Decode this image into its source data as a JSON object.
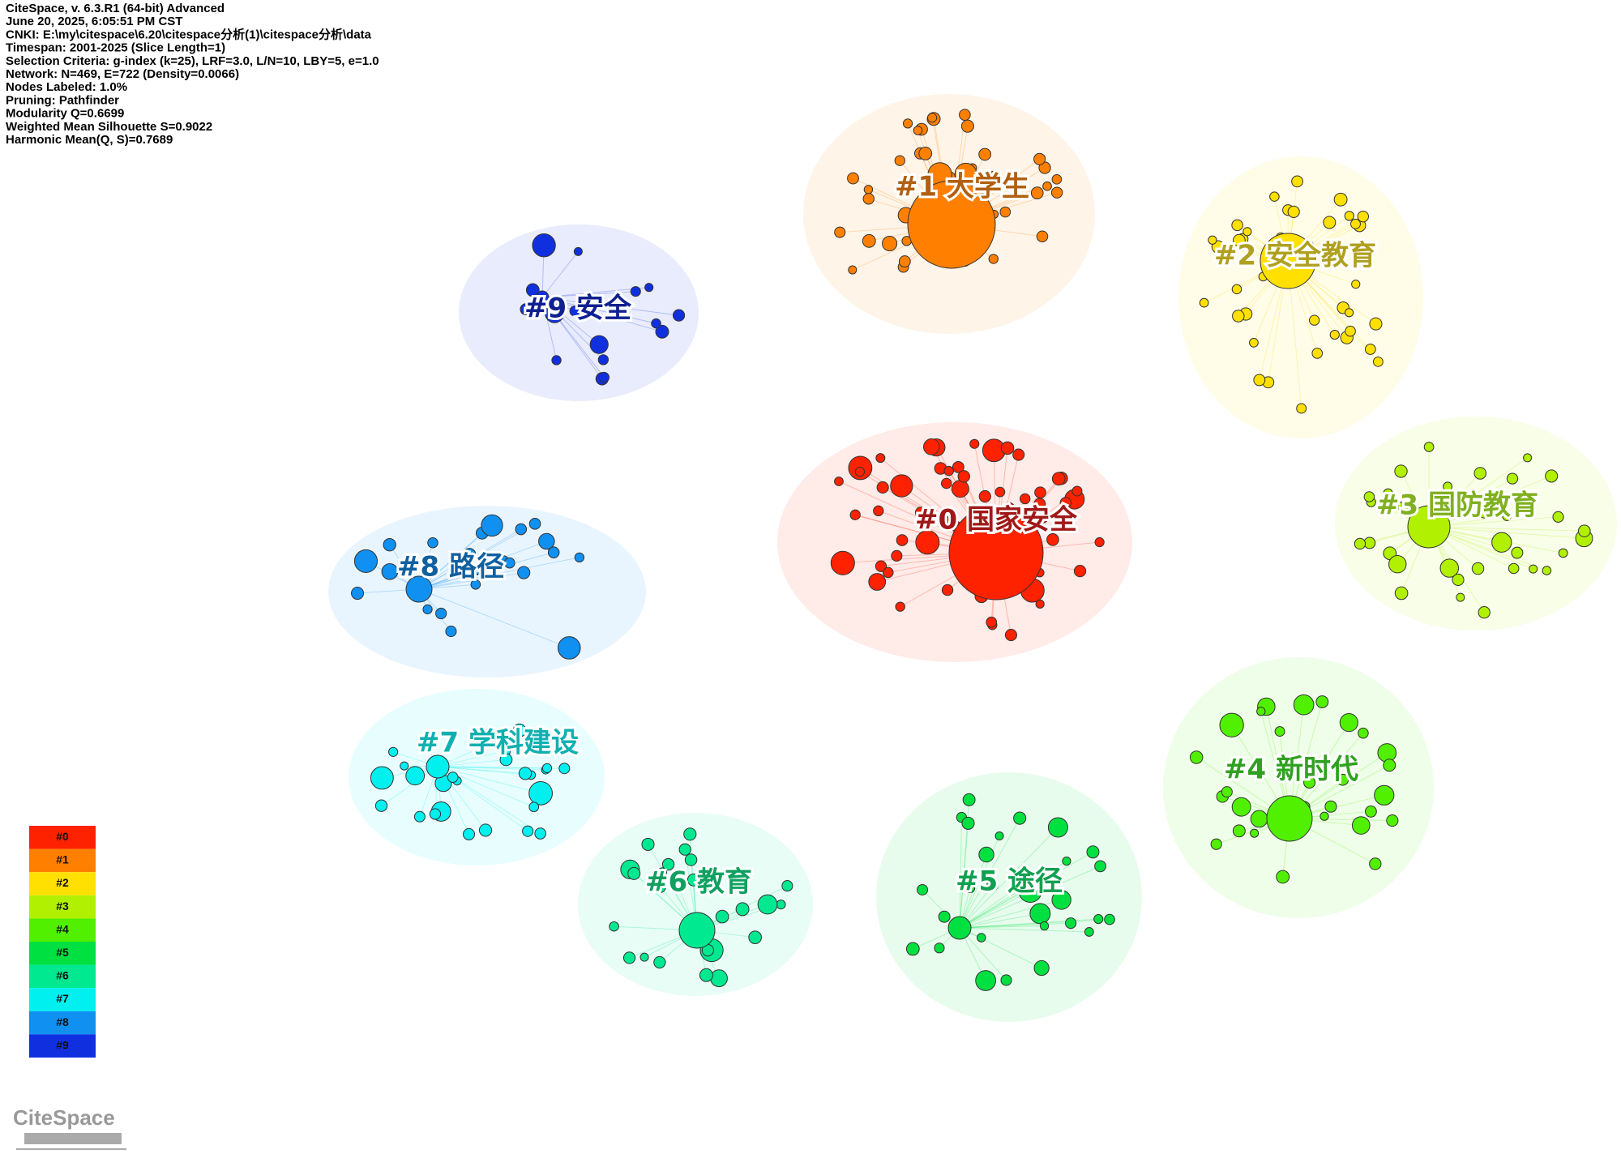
{
  "header": [
    "CiteSpace, v. 6.3.R1 (64-bit) Advanced",
    "June 20, 2025, 6:05:51 PM CST",
    "CNKI: E:\\my\\citespace\\6.20\\citespace分析(1)\\citespace分析\\data",
    "Timespan: 2001-2025 (Slice Length=1)",
    "Selection Criteria: g-index (k=25), LRF=3.0, L/N=10, LBY=5, e=1.0",
    "Network: N=469, E=722 (Density=0.0066)",
    "Nodes Labeled: 1.0%",
    "Pruning: Pathfinder",
    "Modularity Q=0.6699",
    "Weighted Mean Silhouette S=0.9022",
    "Harmonic Mean(Q, S)=0.7689"
  ],
  "clusters": [
    {
      "label": "#0 国家安全",
      "color": "#ff2200",
      "text_color": "#a01818"
    },
    {
      "label": "#1 大学生",
      "color": "#ff8000",
      "text_color": "#b06010"
    },
    {
      "label": "#2 安全教育",
      "color": "#ffe000",
      "text_color": "#b0a020"
    },
    {
      "label": "#3 国防教育",
      "color": "#b0f000",
      "text_color": "#80b020"
    },
    {
      "label": "#4 新时代",
      "color": "#50f000",
      "text_color": "#30a020"
    },
    {
      "label": "#5 途径",
      "color": "#00e040",
      "text_color": "#10a050"
    },
    {
      "label": "#6 教育",
      "color": "#00e890",
      "text_color": "#10a060"
    },
    {
      "label": "#7 学科建设",
      "color": "#00f0f0",
      "text_color": "#10b0b0"
    },
    {
      "label": "#8 路径",
      "color": "#1090f0",
      "text_color": "#1060a0"
    },
    {
      "label": "#9 安全",
      "color": "#1030e0",
      "text_color": "#102090"
    }
  ],
  "legend": [
    "#0",
    "#1",
    "#2",
    "#3",
    "#4",
    "#5",
    "#6",
    "#7",
    "#8",
    "#9"
  ],
  "logo": "CiteSpace"
}
